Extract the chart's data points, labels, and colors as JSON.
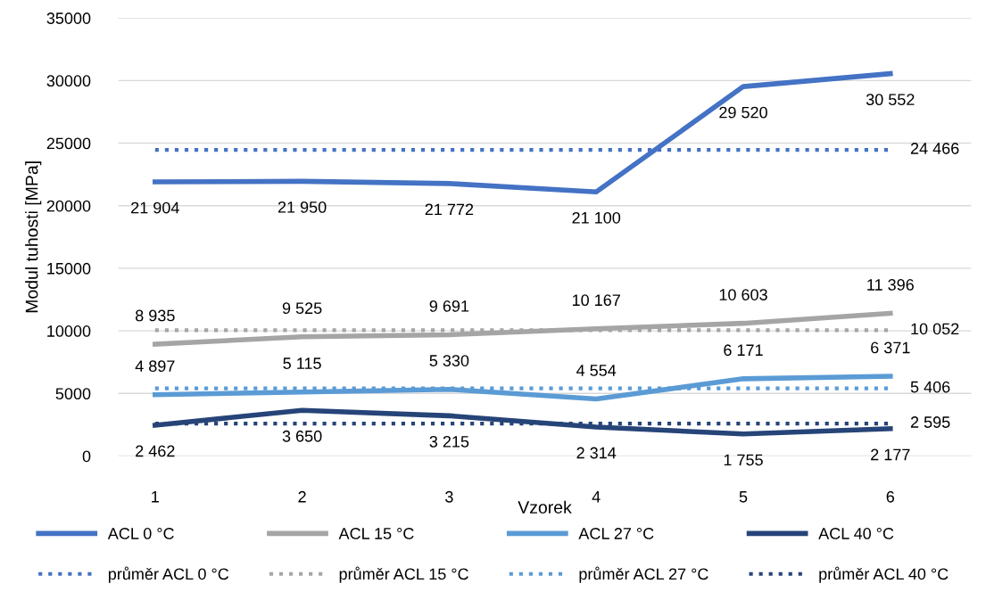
{
  "chart_data": {
    "type": "line",
    "xlabel": "Vzorek",
    "ylabel": "Modul tuhosti [MPa]",
    "categories": [
      "1",
      "2",
      "3",
      "4",
      "5",
      "6"
    ],
    "ylim": [
      0,
      35000
    ],
    "yticks": [
      0,
      5000,
      10000,
      15000,
      20000,
      25000,
      30000,
      35000
    ],
    "grid": "y",
    "legend": "bottom",
    "marker": "none",
    "series": [
      {
        "name": "ACL 0 °C",
        "color": "#4472c4",
        "line_style": "solid",
        "values": [
          21904,
          21950,
          21772,
          21100,
          29520,
          30552
        ],
        "value_labels": [
          "21 904",
          "21 950",
          "21 772",
          "21 100",
          "29 520",
          "30 552"
        ]
      },
      {
        "name": "ACL 15 °C",
        "color": "#a5a5a5",
        "line_style": "solid",
        "values": [
          8935,
          9525,
          9691,
          10167,
          10603,
          11396
        ],
        "value_labels": [
          "8 935",
          "9 525",
          "9 691",
          "10 167",
          "10 603",
          "11 396"
        ]
      },
      {
        "name": "ACL 27 °C",
        "color": "#5b9bd5",
        "line_style": "solid",
        "values": [
          4897,
          5115,
          5330,
          4554,
          6171,
          6371
        ],
        "value_labels": [
          "4 897",
          "5 115",
          "5 330",
          "4 554",
          "6 171",
          "6 371"
        ]
      },
      {
        "name": "ACL 40 °C",
        "color": "#264478",
        "line_style": "solid",
        "values": [
          2462,
          3650,
          3215,
          2314,
          1755,
          2177
        ],
        "value_labels": [
          "2 462",
          "3 650",
          "3 215",
          "2 314",
          "1 755",
          "2 177"
        ]
      },
      {
        "name": "průměr ACL 0 °C",
        "color": "#4472c4",
        "line_style": "dotted",
        "values": [
          24466,
          24466,
          24466,
          24466,
          24466,
          24466
        ],
        "value_labels": [
          null,
          null,
          null,
          null,
          null,
          "24 466"
        ]
      },
      {
        "name": "průměr ACL 15 °C",
        "color": "#a5a5a5",
        "line_style": "dotted",
        "values": [
          10052,
          10052,
          10052,
          10052,
          10052,
          10052
        ],
        "value_labels": [
          null,
          null,
          null,
          null,
          null,
          "10 052"
        ]
      },
      {
        "name": "průměr ACL 27 °C",
        "color": "#5b9bd5",
        "line_style": "dotted",
        "values": [
          5406,
          5406,
          5406,
          5406,
          5406,
          5406
        ],
        "value_labels": [
          null,
          null,
          null,
          null,
          null,
          "5 406"
        ]
      },
      {
        "name": "průměr ACL 40 °C",
        "color": "#264478",
        "line_style": "dotted",
        "values": [
          2595,
          2595,
          2595,
          2595,
          2595,
          2595
        ],
        "value_labels": [
          null,
          null,
          null,
          null,
          null,
          "2 595"
        ]
      }
    ]
  }
}
